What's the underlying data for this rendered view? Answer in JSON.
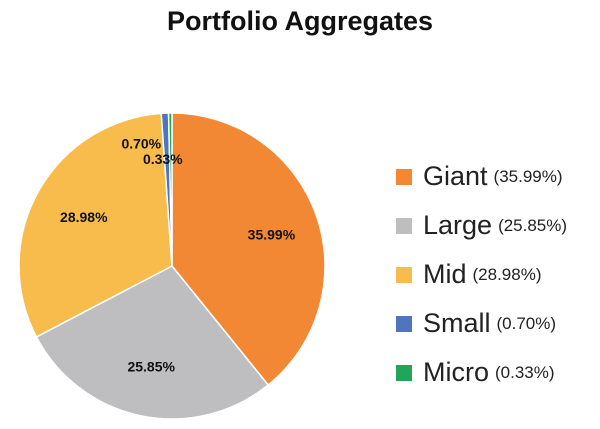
{
  "chart_data": {
    "type": "pie",
    "title": "Portfolio Aggregates",
    "slices": [
      {
        "category": "Giant",
        "value": 35.99,
        "data_label": "35.99%",
        "legend_pct": "(35.99%)",
        "color": "#F28834"
      },
      {
        "category": "Large",
        "value": 25.85,
        "data_label": "25.85%",
        "legend_pct": "(25.85%)",
        "color": "#BEBEC0"
      },
      {
        "category": "Mid",
        "value": 28.98,
        "data_label": "28.98%",
        "legend_pct": "(28.98%)",
        "color": "#F8BC4C"
      },
      {
        "category": "Small",
        "value": 0.7,
        "data_label": "0.70%",
        "legend_pct": "(0.70%)",
        "color": "#4F75BC"
      },
      {
        "category": "Micro",
        "value": 0.33,
        "data_label": "0.33%",
        "legend_pct": "(0.33%)",
        "color": "#21A559"
      }
    ],
    "legend_position": "right"
  }
}
